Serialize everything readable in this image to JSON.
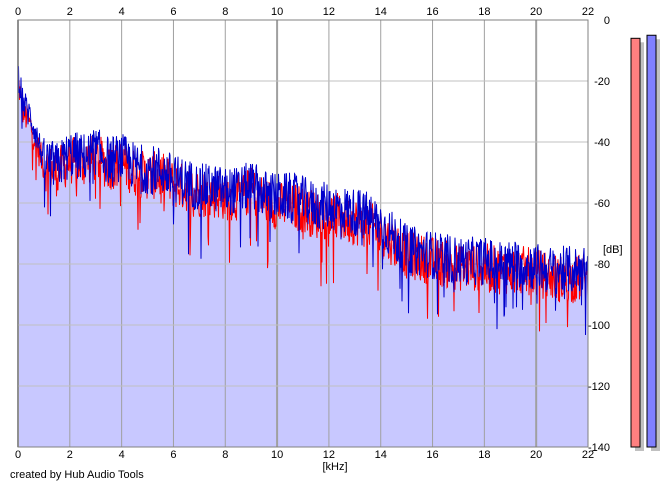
{
  "chart_data": {
    "type": "line",
    "xlabel": "[kHz]",
    "ylabel": "[dB]",
    "xlim": [
      0,
      22
    ],
    "ylim": [
      -140,
      0
    ],
    "x_ticks": [
      "0",
      "2",
      "4",
      "6",
      "8",
      "10",
      "12",
      "14",
      "16",
      "18",
      "20",
      "22"
    ],
    "y_ticks": [
      "0",
      "-20",
      "-40",
      "-60",
      "-80",
      "-100",
      "-120",
      "-140"
    ],
    "grid": true,
    "series": [
      {
        "color": "#ff0000",
        "x": [
          0,
          0.2,
          0.5,
          1,
          1.5,
          2,
          2.5,
          3,
          3.5,
          4,
          4.5,
          5,
          5.5,
          6,
          6.5,
          7,
          7.5,
          8,
          8.5,
          9,
          9.5,
          10,
          10.5,
          11,
          11.5,
          12,
          12.5,
          13,
          13.5,
          14,
          14.5,
          15,
          15.5,
          16,
          16.5,
          17,
          17.5,
          18,
          18.5,
          19,
          19.5,
          20,
          20.5,
          21,
          21.5,
          22
        ],
        "values": [
          -20,
          -30,
          -35,
          -48,
          -50,
          -46,
          -47,
          -45,
          -48,
          -47,
          -50,
          -51,
          -51,
          -54,
          -55,
          -57,
          -57,
          -58,
          -58,
          -56,
          -59,
          -61,
          -61,
          -62,
          -64,
          -64,
          -65,
          -66,
          -67,
          -70,
          -73,
          -77,
          -78,
          -79,
          -80,
          -81,
          -81,
          -81,
          -82,
          -82,
          -82,
          -83,
          -84,
          -85,
          -85,
          -84
        ]
      },
      {
        "color": "#0000cc",
        "x": [
          0,
          0.2,
          0.5,
          1,
          1.5,
          2,
          2.5,
          3,
          3.5,
          4,
          4.5,
          5,
          5.5,
          6,
          6.5,
          7,
          7.5,
          8,
          8.5,
          9,
          9.5,
          10,
          10.5,
          11,
          11.5,
          12,
          12.5,
          13,
          13.5,
          14,
          14.5,
          15,
          15.5,
          16,
          16.5,
          17,
          17.5,
          18,
          18.5,
          19,
          19.5,
          20,
          20.5,
          21,
          21.5,
          22
        ],
        "values": [
          -17,
          -27,
          -32,
          -46,
          -48,
          -44,
          -45,
          -43,
          -46,
          -45,
          -48,
          -49,
          -49,
          -52,
          -53,
          -55,
          -55,
          -56,
          -56,
          -54,
          -57,
          -58,
          -58,
          -59,
          -61,
          -61,
          -62,
          -63,
          -64,
          -67,
          -71,
          -75,
          -76,
          -77,
          -78,
          -79,
          -79,
          -79,
          -80,
          -80,
          -80,
          -81,
          -82,
          -82,
          -82,
          -81
        ]
      }
    ],
    "level_meters": [
      {
        "color": "#ff8080",
        "level_db": -6
      },
      {
        "color": "#8080ff",
        "level_db": -5
      }
    ],
    "fill_color": "#c8c8ff"
  },
  "footer": {
    "credit": "created by Hub Audio Tools"
  }
}
